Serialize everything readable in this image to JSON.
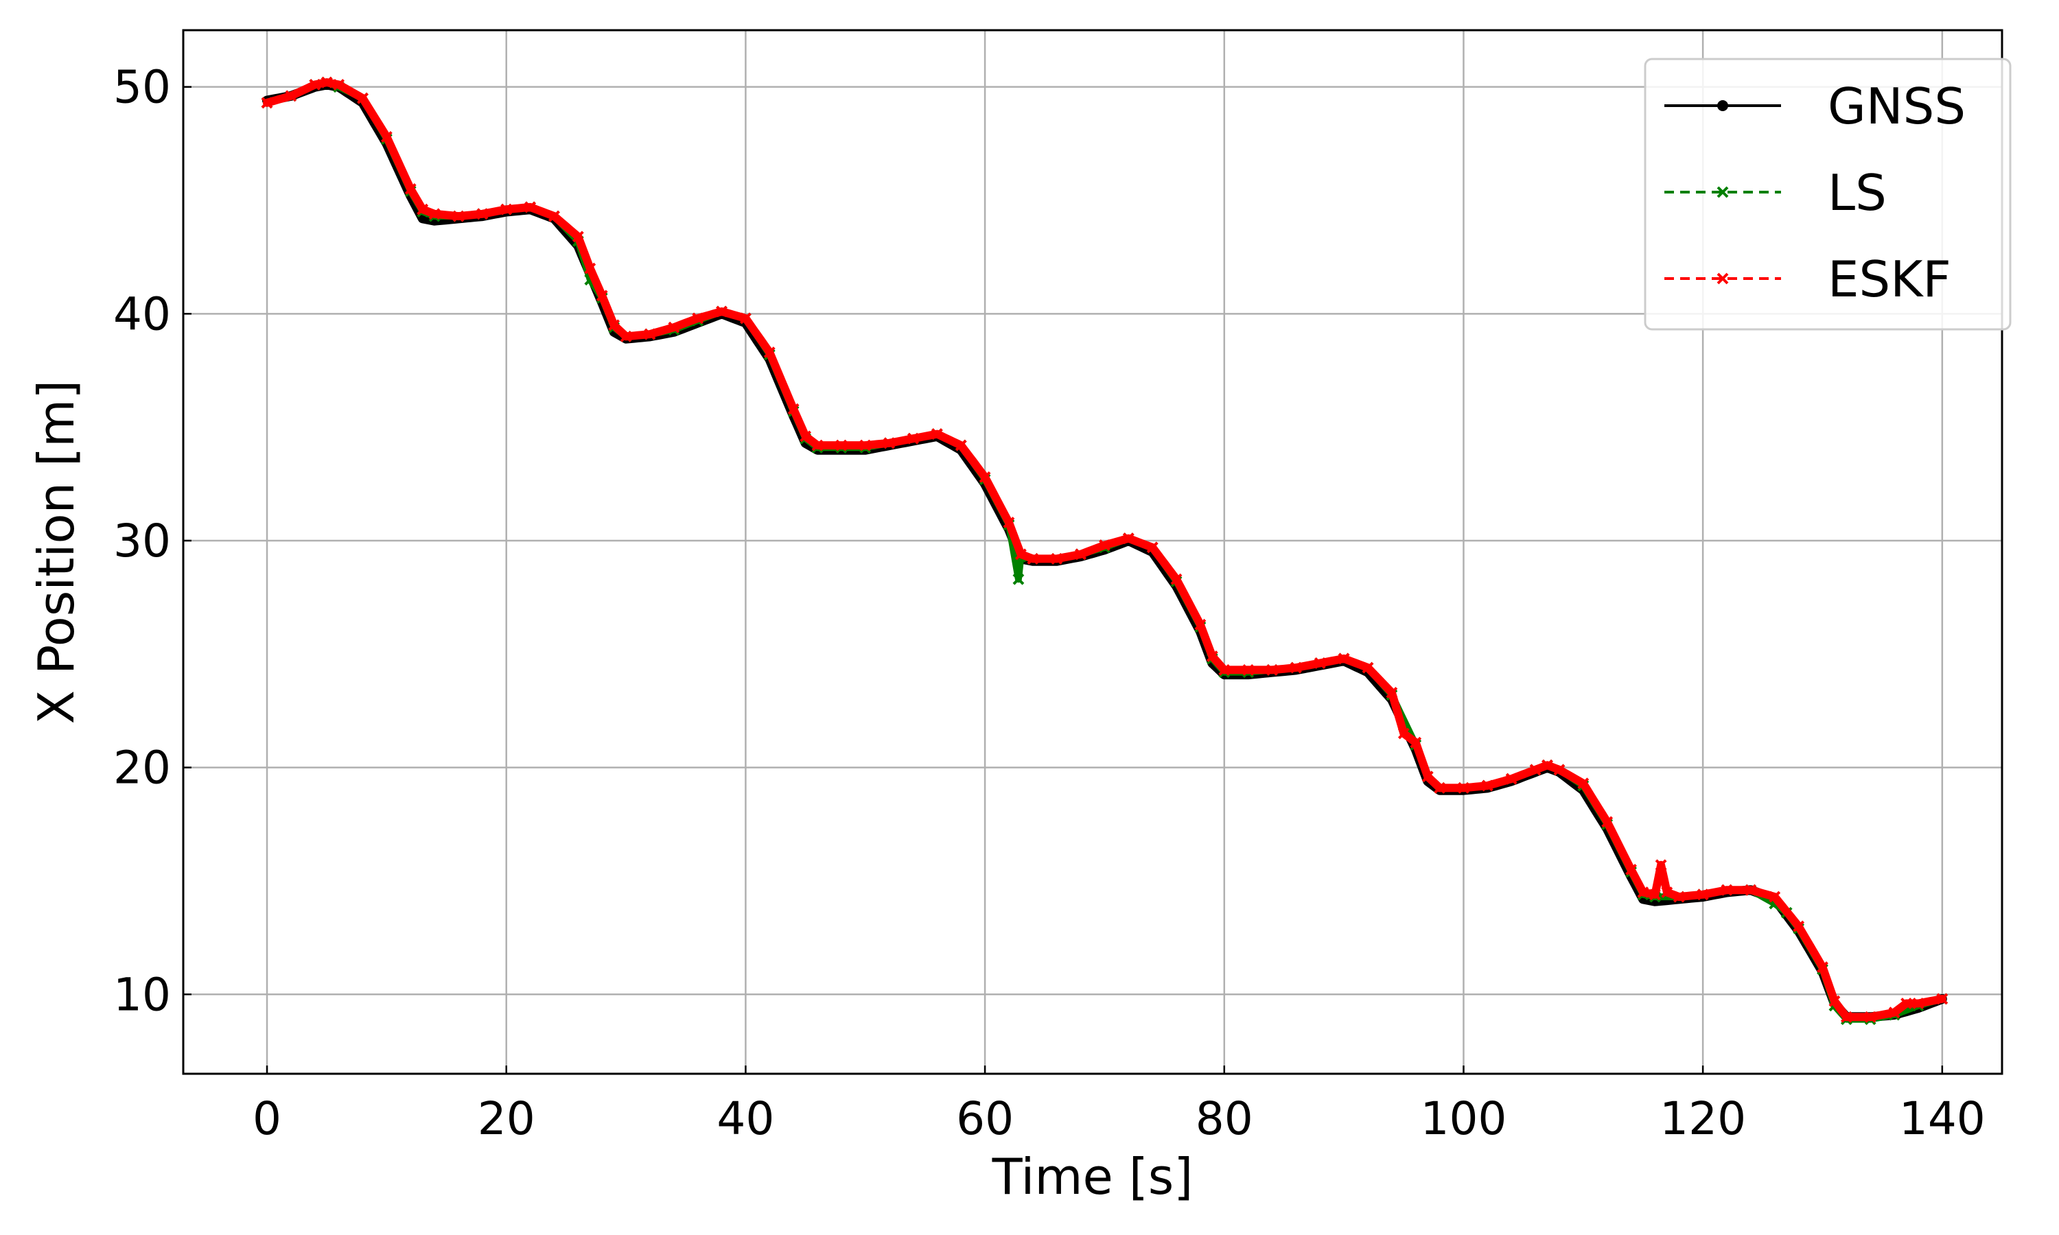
{
  "chart_data": {
    "type": "line",
    "title": "",
    "xlabel": "Time [s]",
    "ylabel": "X Position [m]",
    "xlim": [
      -7,
      145
    ],
    "ylim": [
      6.5,
      52.5
    ],
    "xticks": [
      0,
      20,
      40,
      60,
      80,
      100,
      120,
      140
    ],
    "yticks": [
      10,
      20,
      30,
      40,
      50
    ],
    "grid": true,
    "legend_position": "top-right",
    "series": [
      {
        "name": "GNSS",
        "color": "#000000",
        "line_style": "solid",
        "marker": "dot",
        "points": [
          [
            0,
            49.4
          ],
          [
            2,
            49.6
          ],
          [
            4,
            50.0
          ],
          [
            5,
            50.1
          ],
          [
            6,
            50.0
          ],
          [
            8,
            49.3
          ],
          [
            10,
            47.5
          ],
          [
            12,
            45.2
          ],
          [
            13,
            44.2
          ],
          [
            14,
            44.1
          ],
          [
            16,
            44.2
          ],
          [
            18,
            44.3
          ],
          [
            20,
            44.5
          ],
          [
            22,
            44.6
          ],
          [
            24,
            44.2
          ],
          [
            26,
            43.0
          ],
          [
            28,
            40.5
          ],
          [
            29,
            39.2
          ],
          [
            30,
            38.9
          ],
          [
            32,
            39.0
          ],
          [
            34,
            39.2
          ],
          [
            36,
            39.6
          ],
          [
            38,
            40.0
          ],
          [
            40,
            39.6
          ],
          [
            42,
            38.0
          ],
          [
            44,
            35.5
          ],
          [
            45,
            34.3
          ],
          [
            46,
            34.0
          ],
          [
            48,
            34.0
          ],
          [
            50,
            34.0
          ],
          [
            52,
            34.2
          ],
          [
            54,
            34.4
          ],
          [
            56,
            34.6
          ],
          [
            58,
            34.0
          ],
          [
            60,
            32.5
          ],
          [
            62,
            30.5
          ],
          [
            63,
            29.2
          ],
          [
            64,
            29.1
          ],
          [
            66,
            29.1
          ],
          [
            68,
            29.3
          ],
          [
            70,
            29.6
          ],
          [
            72,
            30.0
          ],
          [
            74,
            29.5
          ],
          [
            76,
            28.0
          ],
          [
            78,
            26.0
          ],
          [
            79,
            24.6
          ],
          [
            80,
            24.1
          ],
          [
            82,
            24.1
          ],
          [
            84,
            24.2
          ],
          [
            86,
            24.3
          ],
          [
            88,
            24.5
          ],
          [
            90,
            24.7
          ],
          [
            92,
            24.2
          ],
          [
            94,
            23.0
          ],
          [
            96,
            20.8
          ],
          [
            97,
            19.4
          ],
          [
            98,
            19.0
          ],
          [
            100,
            19.0
          ],
          [
            102,
            19.1
          ],
          [
            104,
            19.4
          ],
          [
            106,
            19.8
          ],
          [
            107,
            20.0
          ],
          [
            108,
            19.8
          ],
          [
            110,
            19.0
          ],
          [
            112,
            17.3
          ],
          [
            114,
            15.2
          ],
          [
            115,
            14.2
          ],
          [
            116,
            14.1
          ],
          [
            118,
            14.2
          ],
          [
            120,
            14.3
          ],
          [
            122,
            14.5
          ],
          [
            124,
            14.6
          ],
          [
            126,
            14.2
          ],
          [
            128,
            12.8
          ],
          [
            130,
            11.0
          ],
          [
            131,
            9.6
          ],
          [
            132,
            9.0
          ],
          [
            134,
            9.0
          ],
          [
            136,
            9.1
          ],
          [
            138,
            9.4
          ],
          [
            140,
            9.8
          ]
        ]
      },
      {
        "name": "LS",
        "color": "#008000",
        "line_style": "dashed",
        "marker": "x",
        "points": [
          [
            0,
            49.3
          ],
          [
            2,
            49.6
          ],
          [
            4,
            50.1
          ],
          [
            5,
            50.2
          ],
          [
            6,
            50.0
          ],
          [
            8,
            49.5
          ],
          [
            10,
            47.7
          ],
          [
            12,
            45.4
          ],
          [
            13,
            44.5
          ],
          [
            14,
            44.3
          ],
          [
            16,
            44.3
          ],
          [
            18,
            44.4
          ],
          [
            20,
            44.6
          ],
          [
            22,
            44.7
          ],
          [
            24,
            44.3
          ],
          [
            26,
            43.2
          ],
          [
            27,
            41.5
          ],
          [
            28,
            40.7
          ],
          [
            29,
            39.4
          ],
          [
            30,
            39.0
          ],
          [
            32,
            39.1
          ],
          [
            34,
            39.3
          ],
          [
            36,
            39.7
          ],
          [
            38,
            40.1
          ],
          [
            40,
            39.8
          ],
          [
            42,
            38.2
          ],
          [
            44,
            35.7
          ],
          [
            45,
            34.5
          ],
          [
            46,
            34.1
          ],
          [
            48,
            34.1
          ],
          [
            50,
            34.1
          ],
          [
            52,
            34.3
          ],
          [
            54,
            34.5
          ],
          [
            56,
            34.7
          ],
          [
            58,
            34.2
          ],
          [
            60,
            32.7
          ],
          [
            62,
            30.7
          ],
          [
            62.8,
            28.3
          ],
          [
            63,
            29.3
          ],
          [
            64,
            29.2
          ],
          [
            66,
            29.2
          ],
          [
            68,
            29.4
          ],
          [
            70,
            29.7
          ],
          [
            72,
            30.1
          ],
          [
            74,
            29.7
          ],
          [
            76,
            28.2
          ],
          [
            78,
            26.2
          ],
          [
            79,
            24.8
          ],
          [
            80,
            24.2
          ],
          [
            82,
            24.2
          ],
          [
            84,
            24.3
          ],
          [
            86,
            24.4
          ],
          [
            88,
            24.6
          ],
          [
            90,
            24.8
          ],
          [
            92,
            24.4
          ],
          [
            94,
            23.2
          ],
          [
            96,
            21.0
          ],
          [
            97,
            19.6
          ],
          [
            98,
            19.1
          ],
          [
            100,
            19.1
          ],
          [
            102,
            19.2
          ],
          [
            104,
            19.5
          ],
          [
            106,
            19.9
          ],
          [
            107,
            20.1
          ],
          [
            108,
            19.9
          ],
          [
            110,
            19.2
          ],
          [
            112,
            17.5
          ],
          [
            114,
            15.4
          ],
          [
            115,
            14.4
          ],
          [
            116,
            14.3
          ],
          [
            118,
            14.3
          ],
          [
            120,
            14.4
          ],
          [
            122,
            14.6
          ],
          [
            124,
            14.6
          ],
          [
            126,
            14.0
          ],
          [
            127,
            13.6
          ],
          [
            128,
            12.9
          ],
          [
            130,
            11.1
          ],
          [
            131,
            9.5
          ],
          [
            132,
            8.9
          ],
          [
            134,
            8.9
          ],
          [
            136,
            9.1
          ],
          [
            138,
            9.5
          ],
          [
            140,
            9.8
          ]
        ]
      },
      {
        "name": "ESKF",
        "color": "#ff0000",
        "line_style": "dashed",
        "marker": "x",
        "points": [
          [
            0,
            49.3
          ],
          [
            2,
            49.6
          ],
          [
            4,
            50.1
          ],
          [
            5,
            50.2
          ],
          [
            6,
            50.1
          ],
          [
            8,
            49.5
          ],
          [
            10,
            47.8
          ],
          [
            12,
            45.5
          ],
          [
            13,
            44.6
          ],
          [
            14,
            44.4
          ],
          [
            16,
            44.3
          ],
          [
            18,
            44.4
          ],
          [
            20,
            44.6
          ],
          [
            22,
            44.7
          ],
          [
            24,
            44.3
          ],
          [
            26,
            43.4
          ],
          [
            27,
            42.0
          ],
          [
            28,
            40.8
          ],
          [
            29,
            39.5
          ],
          [
            30,
            39.0
          ],
          [
            32,
            39.1
          ],
          [
            34,
            39.4
          ],
          [
            36,
            39.8
          ],
          [
            38,
            40.1
          ],
          [
            40,
            39.8
          ],
          [
            42,
            38.3
          ],
          [
            44,
            35.8
          ],
          [
            45,
            34.6
          ],
          [
            46,
            34.2
          ],
          [
            48,
            34.2
          ],
          [
            50,
            34.2
          ],
          [
            52,
            34.3
          ],
          [
            54,
            34.5
          ],
          [
            56,
            34.7
          ],
          [
            58,
            34.2
          ],
          [
            60,
            32.8
          ],
          [
            62,
            30.8
          ],
          [
            63,
            29.4
          ],
          [
            64,
            29.2
          ],
          [
            66,
            29.2
          ],
          [
            68,
            29.4
          ],
          [
            70,
            29.8
          ],
          [
            72,
            30.1
          ],
          [
            74,
            29.7
          ],
          [
            76,
            28.3
          ],
          [
            78,
            26.3
          ],
          [
            79,
            24.9
          ],
          [
            80,
            24.3
          ],
          [
            82,
            24.3
          ],
          [
            84,
            24.3
          ],
          [
            86,
            24.4
          ],
          [
            88,
            24.6
          ],
          [
            90,
            24.8
          ],
          [
            92,
            24.4
          ],
          [
            94,
            23.3
          ],
          [
            95,
            21.5
          ],
          [
            96,
            21.1
          ],
          [
            97,
            19.6
          ],
          [
            98,
            19.1
          ],
          [
            100,
            19.1
          ],
          [
            102,
            19.2
          ],
          [
            104,
            19.5
          ],
          [
            106,
            19.9
          ],
          [
            107,
            20.1
          ],
          [
            108,
            19.9
          ],
          [
            110,
            19.3
          ],
          [
            112,
            17.6
          ],
          [
            114,
            15.5
          ],
          [
            115,
            14.5
          ],
          [
            116,
            14.4
          ],
          [
            116.5,
            15.7
          ],
          [
            117,
            14.5
          ],
          [
            118,
            14.3
          ],
          [
            120,
            14.4
          ],
          [
            122,
            14.6
          ],
          [
            124,
            14.6
          ],
          [
            126,
            14.3
          ],
          [
            128,
            13.0
          ],
          [
            130,
            11.2
          ],
          [
            131,
            9.7
          ],
          [
            132,
            9.0
          ],
          [
            134,
            9.0
          ],
          [
            136,
            9.2
          ],
          [
            137,
            9.6
          ],
          [
            138,
            9.6
          ],
          [
            140,
            9.8
          ]
        ]
      }
    ]
  }
}
